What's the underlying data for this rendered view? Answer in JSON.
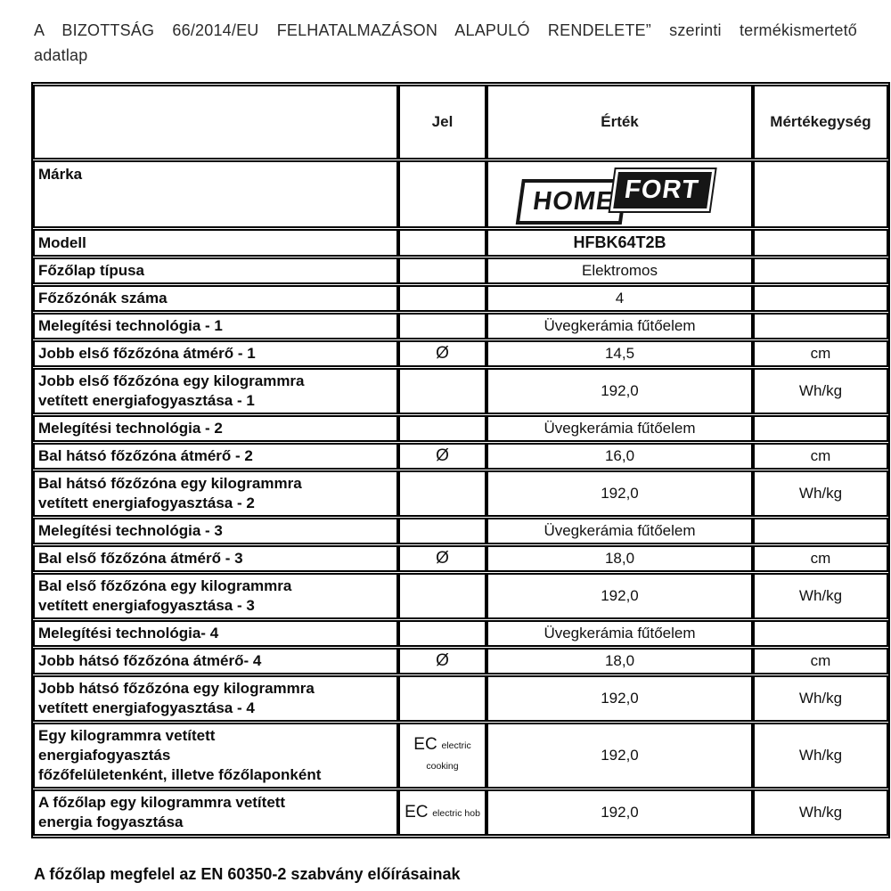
{
  "document": {
    "title_line1": "A BIZOTTSÁG 66/2014/EU FELHATALMAZÁSON ALAPULÓ RENDELETE” szerinti termékismertető",
    "title_line2": "adatlap",
    "footer": "A főzőlap megfelel az EN 60350-2 szabvány előírásainak"
  },
  "logo": {
    "home": "HOME",
    "fort": "FORT",
    "color_dark": "#161616",
    "color_light": "#ffffff"
  },
  "table": {
    "headers": [
      "",
      "Jel",
      "Érték",
      "Mértékegység"
    ],
    "rows": [
      {
        "label": "Márka",
        "jel": "",
        "value": "",
        "unit": "",
        "logo": true
      },
      {
        "label": "Modell",
        "jel": "",
        "value": "HFBK64T2B",
        "unit": "",
        "value_bold": true
      },
      {
        "label": "Főzőlap típusa",
        "jel": "",
        "value": "Elektromos",
        "unit": ""
      },
      {
        "label": "Főzőzónák száma",
        "jel": "",
        "value": "4",
        "unit": ""
      },
      {
        "label": "Melegítési technológia - 1",
        "jel": "",
        "value": "Üvegkerámia fűtőelem",
        "unit": ""
      },
      {
        "label": "Jobb első főzőzóna átmérő - 1",
        "jel": "Ø",
        "value": "14,5",
        "unit": "cm"
      },
      {
        "label": "Jobb első főzőzóna egy kilogrammra\nvetített energiafogyasztása - 1",
        "jel": "",
        "value": "192,0",
        "unit": "Wh/kg"
      },
      {
        "label": "Melegítési technológia - 2",
        "jel": "",
        "value": "Üvegkerámia fűtőelem",
        "unit": ""
      },
      {
        "label": "Bal hátsó főzőzóna átmérő - 2",
        "jel": "Ø",
        "value": "16,0",
        "unit": "cm"
      },
      {
        "label": "Bal hátsó főzőzóna egy kilogrammra\nvetített energiafogyasztása - 2",
        "jel": "",
        "value": "192,0",
        "unit": "Wh/kg"
      },
      {
        "label": "Melegítési technológia - 3",
        "jel": "",
        "value": "Üvegkerámia fűtőelem",
        "unit": ""
      },
      {
        "label": "Bal első főzőzóna átmérő - 3",
        "jel": "Ø",
        "value": "18,0",
        "unit": "cm"
      },
      {
        "label": "Bal első főzőzóna egy kilogrammra\nvetített energiafogyasztása - 3",
        "jel": "",
        "value": "192,0",
        "unit": "Wh/kg"
      },
      {
        "label": "Melegítési technológia- 4",
        "jel": "",
        "value": "Üvegkerámia fűtőelem",
        "unit": ""
      },
      {
        "label": "Jobb hátsó főzőzóna átmérő- 4",
        "jel": "Ø",
        "value": "18,0",
        "unit": "cm"
      },
      {
        "label": "Jobb hátsó főzőzóna egy kilogrammra\nvetített energiafogyasztása - 4",
        "jel": "",
        "value": "192,0",
        "unit": "Wh/kg"
      },
      {
        "label": "Egy kilogrammra vetített\nenergiafogyasztás\nfőzőfelületenként, illetve főzőlaponként",
        "jel": "EC",
        "jel_sub": "electric cooking",
        "value": "192,0",
        "unit": "Wh/kg"
      },
      {
        "label": "A főzőlap egy kilogrammra vetített\nenergia fogyasztása",
        "jel": "EC",
        "jel_sub": "electric hob",
        "value": "192,0",
        "unit": "Wh/kg"
      }
    ]
  }
}
